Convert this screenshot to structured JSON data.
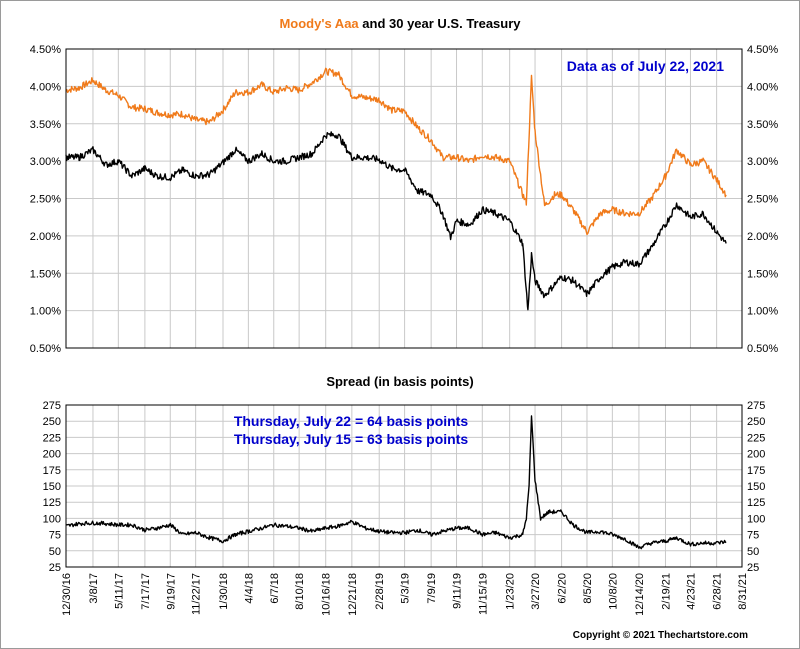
{
  "top_chart": {
    "title_part1": "Moody's Aaa",
    "title_part2": " and 30 year U.S. Treasury",
    "title_color": "#f07a1a",
    "note": "Data as of July 22, 2021",
    "note_color": "#0000cc"
  },
  "bottom_chart": {
    "title": "Spread (in basis points)",
    "note_line1": "Thursday, July 22 = 64 basis points",
    "note_line2": "Thursday, July 15 = 63 basis points",
    "note_color": "#0000cc"
  },
  "copyright": "Copyright © 2021 Thechartstore.com",
  "chart_data": [
    {
      "type": "line",
      "title": "Moody's Aaa and 30 year U.S. Treasury",
      "ylim": [
        0.5,
        4.5
      ],
      "yticks": [
        "0.50%",
        "1.00%",
        "1.50%",
        "2.00%",
        "2.50%",
        "3.00%",
        "3.50%",
        "4.00%",
        "4.50%"
      ],
      "grid": true,
      "x_date_range": [
        "2016-12-30",
        "2021-08-31"
      ],
      "series": [
        {
          "name": "Moody's Aaa",
          "color": "#f07a1a",
          "points": [
            [
              "2016-12-30",
              3.95
            ],
            [
              "2017-02-01",
              3.98
            ],
            [
              "2017-03-08",
              4.08
            ],
            [
              "2017-04-10",
              3.95
            ],
            [
              "2017-05-11",
              3.88
            ],
            [
              "2017-06-14",
              3.72
            ],
            [
              "2017-07-17",
              3.7
            ],
            [
              "2017-08-17",
              3.65
            ],
            [
              "2017-09-19",
              3.62
            ],
            [
              "2017-10-20",
              3.63
            ],
            [
              "2017-11-22",
              3.55
            ],
            [
              "2017-12-27",
              3.52
            ],
            [
              "2018-01-30",
              3.68
            ],
            [
              "2018-03-02",
              3.92
            ],
            [
              "2018-04-04",
              3.92
            ],
            [
              "2018-05-08",
              4.02
            ],
            [
              "2018-06-07",
              3.92
            ],
            [
              "2018-07-09",
              3.98
            ],
            [
              "2018-08-10",
              3.95
            ],
            [
              "2018-09-12",
              4.05
            ],
            [
              "2018-10-16",
              4.2
            ],
            [
              "2018-11-16",
              4.17
            ],
            [
              "2018-12-21",
              3.88
            ],
            [
              "2019-01-24",
              3.85
            ],
            [
              "2019-02-28",
              3.82
            ],
            [
              "2019-04-01",
              3.68
            ],
            [
              "2019-05-03",
              3.67
            ],
            [
              "2019-06-05",
              3.45
            ],
            [
              "2019-07-09",
              3.28
            ],
            [
              "2019-08-07",
              3.05
            ],
            [
              "2019-09-11",
              3.05
            ],
            [
              "2019-10-14",
              3.0
            ],
            [
              "2019-11-15",
              3.08
            ],
            [
              "2019-12-18",
              3.05
            ],
            [
              "2020-01-23",
              3.0
            ],
            [
              "2020-02-25",
              2.55
            ],
            [
              "2020-03-05",
              2.45
            ],
            [
              "2020-03-18",
              4.12
            ],
            [
              "2020-03-27",
              3.4
            ],
            [
              "2020-04-20",
              2.4
            ],
            [
              "2020-05-15",
              2.55
            ],
            [
              "2020-06-02",
              2.55
            ],
            [
              "2020-07-01",
              2.35
            ],
            [
              "2020-08-05",
              2.05
            ],
            [
              "2020-09-08",
              2.3
            ],
            [
              "2020-10-08",
              2.35
            ],
            [
              "2020-11-10",
              2.3
            ],
            [
              "2020-12-14",
              2.3
            ],
            [
              "2021-01-15",
              2.5
            ],
            [
              "2021-02-19",
              2.8
            ],
            [
              "2021-03-19",
              3.15
            ],
            [
              "2021-04-23",
              2.95
            ],
            [
              "2021-05-25",
              3.0
            ],
            [
              "2021-06-28",
              2.75
            ],
            [
              "2021-07-22",
              2.55
            ]
          ]
        },
        {
          "name": "30 year U.S. Treasury",
          "color": "#000000",
          "points": [
            [
              "2016-12-30",
              3.05
            ],
            [
              "2017-02-01",
              3.05
            ],
            [
              "2017-03-08",
              3.15
            ],
            [
              "2017-04-10",
              2.95
            ],
            [
              "2017-05-11",
              3.0
            ],
            [
              "2017-06-14",
              2.8
            ],
            [
              "2017-07-17",
              2.9
            ],
            [
              "2017-08-17",
              2.8
            ],
            [
              "2017-09-19",
              2.78
            ],
            [
              "2017-10-20",
              2.88
            ],
            [
              "2017-11-22",
              2.8
            ],
            [
              "2017-12-27",
              2.82
            ],
            [
              "2018-01-30",
              2.98
            ],
            [
              "2018-03-02",
              3.15
            ],
            [
              "2018-04-04",
              3.0
            ],
            [
              "2018-05-08",
              3.1
            ],
            [
              "2018-06-07",
              3.0
            ],
            [
              "2018-07-09",
              3.0
            ],
            [
              "2018-08-10",
              3.05
            ],
            [
              "2018-09-12",
              3.1
            ],
            [
              "2018-10-16",
              3.35
            ],
            [
              "2018-11-16",
              3.35
            ],
            [
              "2018-12-21",
              3.05
            ],
            [
              "2019-01-24",
              3.05
            ],
            [
              "2019-02-28",
              3.02
            ],
            [
              "2019-04-01",
              2.9
            ],
            [
              "2019-05-03",
              2.88
            ],
            [
              "2019-06-05",
              2.6
            ],
            [
              "2019-07-09",
              2.55
            ],
            [
              "2019-08-07",
              2.3
            ],
            [
              "2019-08-27",
              1.98
            ],
            [
              "2019-09-11",
              2.2
            ],
            [
              "2019-10-14",
              2.15
            ],
            [
              "2019-11-15",
              2.35
            ],
            [
              "2019-12-18",
              2.3
            ],
            [
              "2020-01-23",
              2.2
            ],
            [
              "2020-02-25",
              1.9
            ],
            [
              "2020-03-09",
              1.0
            ],
            [
              "2020-03-18",
              1.75
            ],
            [
              "2020-03-27",
              1.4
            ],
            [
              "2020-04-20",
              1.2
            ],
            [
              "2020-05-15",
              1.35
            ],
            [
              "2020-06-02",
              1.45
            ],
            [
              "2020-07-01",
              1.4
            ],
            [
              "2020-08-05",
              1.22
            ],
            [
              "2020-09-08",
              1.45
            ],
            [
              "2020-10-08",
              1.58
            ],
            [
              "2020-11-10",
              1.65
            ],
            [
              "2020-12-14",
              1.62
            ],
            [
              "2021-01-15",
              1.85
            ],
            [
              "2021-02-19",
              2.15
            ],
            [
              "2021-03-19",
              2.42
            ],
            [
              "2021-04-23",
              2.25
            ],
            [
              "2021-05-25",
              2.3
            ],
            [
              "2021-06-28",
              2.05
            ],
            [
              "2021-07-22",
              1.9
            ]
          ]
        }
      ]
    },
    {
      "type": "line",
      "title": "Spread (in basis points)",
      "ylim": [
        25,
        275
      ],
      "yticks": [
        "25",
        "50",
        "75",
        "100",
        "125",
        "150",
        "175",
        "200",
        "225",
        "250",
        "275"
      ],
      "grid": true,
      "x_date_range": [
        "2016-12-30",
        "2021-08-31"
      ],
      "xticks": [
        "12/30/16",
        "3/8/17",
        "5/11/17",
        "7/17/17",
        "9/19/17",
        "11/22/17",
        "1/30/18",
        "4/4/18",
        "6/7/18",
        "8/10/18",
        "10/16/18",
        "12/21/18",
        "2/28/19",
        "5/3/19",
        "7/9/19",
        "9/11/19",
        "11/15/19",
        "1/23/20",
        "3/27/20",
        "6/2/20",
        "8/5/20",
        "10/8/20",
        "12/14/20",
        "2/19/21",
        "4/23/21",
        "6/28/21",
        "8/31/21"
      ],
      "series": [
        {
          "name": "Spread",
          "color": "#000000",
          "points": [
            [
              "2016-12-30",
              88
            ],
            [
              "2017-02-01",
              92
            ],
            [
              "2017-03-08",
              93
            ],
            [
              "2017-04-10",
              92
            ],
            [
              "2017-05-11",
              90
            ],
            [
              "2017-06-14",
              90
            ],
            [
              "2017-07-17",
              82
            ],
            [
              "2017-08-17",
              85
            ],
            [
              "2017-09-19",
              90
            ],
            [
              "2017-10-20",
              75
            ],
            [
              "2017-11-22",
              78
            ],
            [
              "2017-12-27",
              70
            ],
            [
              "2018-01-30",
              65
            ],
            [
              "2018-03-02",
              75
            ],
            [
              "2018-04-04",
              80
            ],
            [
              "2018-05-08",
              85
            ],
            [
              "2018-06-07",
              90
            ],
            [
              "2018-07-09",
              88
            ],
            [
              "2018-08-10",
              85
            ],
            [
              "2018-09-12",
              80
            ],
            [
              "2018-10-16",
              85
            ],
            [
              "2018-11-16",
              88
            ],
            [
              "2018-12-21",
              95
            ],
            [
              "2019-01-24",
              85
            ],
            [
              "2019-02-28",
              80
            ],
            [
              "2019-04-01",
              78
            ],
            [
              "2019-05-03",
              78
            ],
            [
              "2019-06-05",
              82
            ],
            [
              "2019-07-09",
              75
            ],
            [
              "2019-08-07",
              80
            ],
            [
              "2019-09-11",
              85
            ],
            [
              "2019-10-14",
              85
            ],
            [
              "2019-11-15",
              75
            ],
            [
              "2019-12-18",
              78
            ],
            [
              "2020-01-23",
              70
            ],
            [
              "2020-02-25",
              75
            ],
            [
              "2020-03-05",
              100
            ],
            [
              "2020-03-12",
              150
            ],
            [
              "2020-03-18",
              258
            ],
            [
              "2020-03-27",
              160
            ],
            [
              "2020-04-10",
              100
            ],
            [
              "2020-05-01",
              110
            ],
            [
              "2020-06-02",
              110
            ],
            [
              "2020-07-01",
              90
            ],
            [
              "2020-08-05",
              78
            ],
            [
              "2020-09-08",
              80
            ],
            [
              "2020-10-08",
              75
            ],
            [
              "2020-11-10",
              68
            ],
            [
              "2020-12-14",
              55
            ],
            [
              "2021-01-15",
              62
            ],
            [
              "2021-02-19",
              65
            ],
            [
              "2021-03-19",
              70
            ],
            [
              "2021-04-23",
              60
            ],
            [
              "2021-05-25",
              62
            ],
            [
              "2021-06-28",
              62
            ],
            [
              "2021-07-22",
              64
            ]
          ]
        }
      ]
    }
  ]
}
